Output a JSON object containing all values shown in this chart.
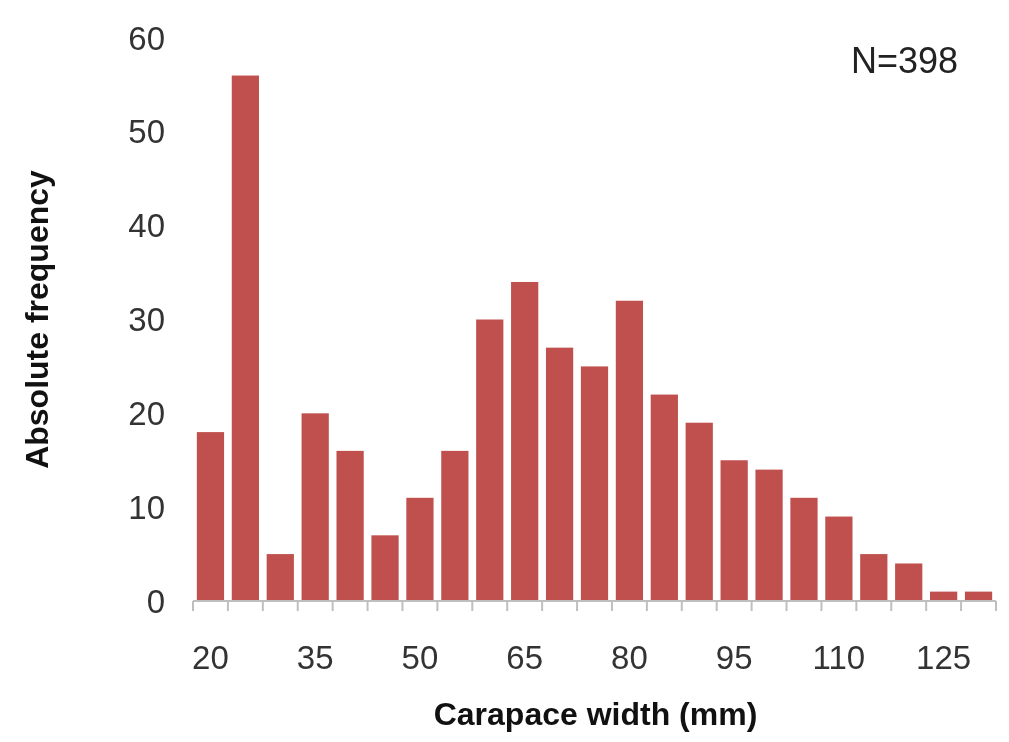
{
  "chart_data": {
    "type": "bar",
    "xlabel": "Carapace width (mm)",
    "ylabel": "Absolute frequency",
    "annotations": [
      "N=398"
    ],
    "categories": [
      "20",
      null,
      null,
      "35",
      null,
      null,
      "50",
      null,
      null,
      "65",
      null,
      null,
      "80",
      null,
      null,
      "95",
      null,
      null,
      "110",
      null,
      null,
      "125",
      null
    ],
    "values": [
      18,
      56,
      5,
      20,
      16,
      7,
      11,
      16,
      30,
      34,
      27,
      25,
      32,
      22,
      19,
      15,
      14,
      11,
      9,
      5,
      4,
      1,
      1
    ],
    "color": "#c0504d",
    "ylim": [
      0,
      60
    ],
    "yticks": [
      0,
      10,
      20,
      30,
      40,
      50,
      60
    ],
    "grid": false
  }
}
